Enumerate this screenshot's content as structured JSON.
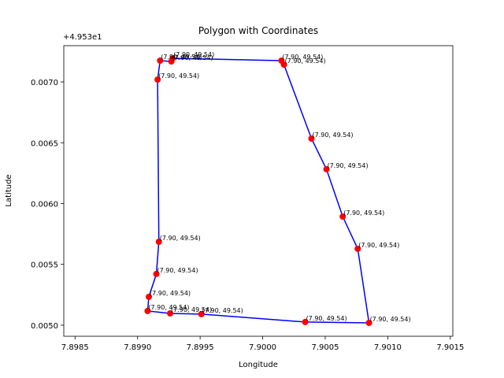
{
  "chart_data": {
    "type": "polygon",
    "title": "Polygon with Coordinates",
    "x_label": "Longitude",
    "y_label": "Latitude",
    "y_offset_label": "+4.953e1",
    "line_color": "#0000ff",
    "marker_color": "#ff0000",
    "x": [
      7.89918,
      7.89927,
      7.89928,
      7.90015,
      7.90017,
      7.90039,
      7.90051,
      7.90064,
      7.90076,
      7.90085,
      7.90034,
      7.89951,
      7.89926,
      7.89908,
      7.89909,
      7.89915,
      7.89917,
      7.89916
    ],
    "y": [
      0.007175,
      0.007168,
      0.007194,
      0.007175,
      0.007142,
      0.006534,
      0.006282,
      0.005893,
      0.005628,
      0.005019,
      0.005026,
      0.005091,
      0.005097,
      0.005117,
      0.005233,
      0.005421,
      0.005686,
      0.007019
    ],
    "value_labels": [
      "(7.90, 49.54)",
      "(7.90, 49.54)",
      "(7.90, 49.54)",
      "(7.90, 49.54)",
      "(7.90, 49.54)",
      "(7.90, 49.54)",
      "(7.90, 49.54)",
      "(7.90, 49.54)",
      "(7.90, 49.54)",
      "(7.90, 49.54)",
      "(7.90, 49.54)",
      "(7.90, 49.54)",
      "(7.90, 49.54)",
      "(7.90, 49.54)",
      "(7.90, 49.54)",
      "(7.90, 49.54)",
      "(7.90, 49.54)",
      "(7.90, 49.54)"
    ],
    "xlim": [
      7.89841,
      7.90152
    ],
    "ylim": [
      0.004909,
      0.007298
    ],
    "xticks": [
      7.8985,
      {
        "value": 7.899,
        "label": "7.8990"
      },
      7.8995,
      {
        "value": 7.9,
        "label": "7.9000"
      },
      7.9005,
      {
        "value": 7.901,
        "label": "7.9010"
      },
      7.9015
    ],
    "yticks": [
      {
        "value": 0.005,
        "label": "0.0050"
      },
      {
        "value": 0.0055,
        "label": "0.0055"
      },
      {
        "value": 0.006,
        "label": "0.0060"
      },
      {
        "value": 0.0065,
        "label": "0.0065"
      },
      {
        "value": 0.007,
        "label": "0.0070"
      }
    ],
    "grid": false
  }
}
